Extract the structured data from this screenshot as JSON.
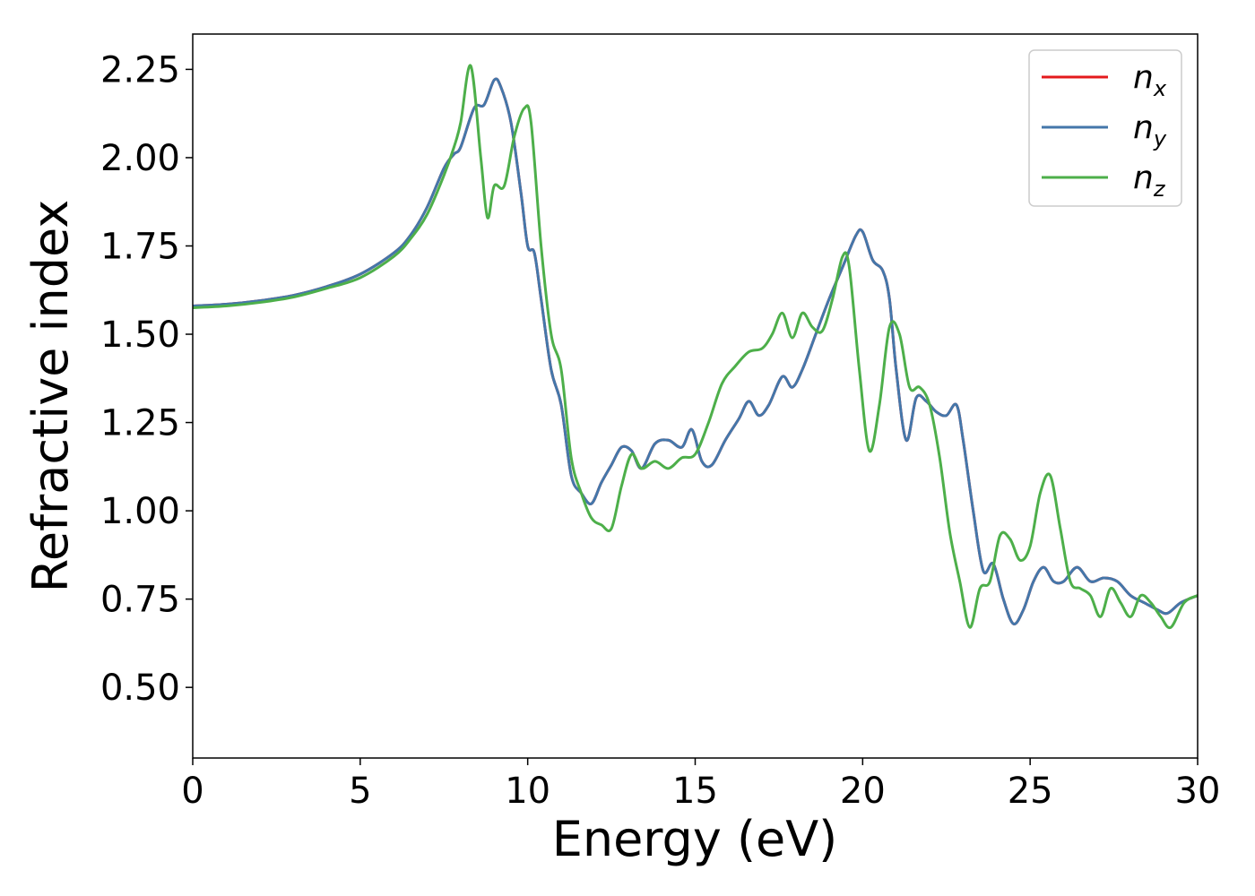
{
  "chart_data": {
    "type": "line",
    "title": "",
    "xlabel": "Energy (eV)",
    "ylabel": "Refractive index",
    "xlim": [
      0,
      30
    ],
    "ylim": [
      0.3,
      2.35
    ],
    "xticks": [
      0,
      5,
      10,
      15,
      20,
      25,
      30
    ],
    "xtick_labels": [
      "0",
      "5",
      "10",
      "15",
      "20",
      "25",
      "30"
    ],
    "yticks": [
      0.5,
      0.75,
      1.0,
      1.25,
      1.5,
      1.75,
      2.0,
      2.25
    ],
    "ytick_labels": [
      "0.50",
      "0.75",
      "1.00",
      "1.25",
      "1.50",
      "1.75",
      "2.00",
      "2.25"
    ],
    "grid": false,
    "legend_position": "top-right",
    "series": [
      {
        "name": "n_x",
        "legend_base": "n",
        "legend_sub": "x",
        "color": "#e41a1c",
        "x": [
          0,
          1,
          2,
          3,
          4,
          5,
          6,
          6.5,
          7,
          7.5,
          7.8,
          8.0,
          8.4,
          8.7,
          9.0,
          9.2,
          9.5,
          9.8,
          10.0,
          10.2,
          10.4,
          10.7,
          11.0,
          11.3,
          11.6,
          11.9,
          12.2,
          12.5,
          12.8,
          13.1,
          13.4,
          13.8,
          14.2,
          14.6,
          14.9,
          15.2,
          15.5,
          15.9,
          16.3,
          16.6,
          16.9,
          17.2,
          17.6,
          17.9,
          18.2,
          18.6,
          19.0,
          19.4,
          19.8,
          20.0,
          20.3,
          20.6,
          20.8,
          21.0,
          21.3,
          21.6,
          21.9,
          22.2,
          22.5,
          22.8,
          23.0,
          23.3,
          23.6,
          23.9,
          24.2,
          24.5,
          24.8,
          25.1,
          25.4,
          25.7,
          26.0,
          26.4,
          26.8,
          27.2,
          27.6,
          28.0,
          28.4,
          28.8,
          29.1,
          29.5,
          30
        ],
        "y": [
          1.58,
          1.585,
          1.595,
          1.61,
          1.635,
          1.67,
          1.73,
          1.78,
          1.86,
          1.97,
          2.01,
          2.03,
          2.14,
          2.15,
          2.22,
          2.2,
          2.1,
          1.9,
          1.75,
          1.73,
          1.6,
          1.4,
          1.3,
          1.1,
          1.05,
          1.02,
          1.08,
          1.13,
          1.18,
          1.17,
          1.12,
          1.19,
          1.2,
          1.18,
          1.23,
          1.14,
          1.13,
          1.2,
          1.26,
          1.31,
          1.27,
          1.3,
          1.38,
          1.35,
          1.4,
          1.5,
          1.6,
          1.69,
          1.78,
          1.79,
          1.71,
          1.68,
          1.6,
          1.4,
          1.2,
          1.32,
          1.31,
          1.28,
          1.27,
          1.3,
          1.2,
          1.0,
          0.83,
          0.85,
          0.75,
          0.68,
          0.72,
          0.8,
          0.84,
          0.8,
          0.8,
          0.84,
          0.8,
          0.81,
          0.8,
          0.76,
          0.74,
          0.72,
          0.71,
          0.74,
          0.76
        ]
      },
      {
        "name": "n_y",
        "legend_base": "n",
        "legend_sub": "y",
        "color": "#4477aa",
        "x": [
          0,
          1,
          2,
          3,
          4,
          5,
          6,
          6.5,
          7,
          7.5,
          7.8,
          8.0,
          8.4,
          8.7,
          9.0,
          9.2,
          9.5,
          9.8,
          10.0,
          10.2,
          10.4,
          10.7,
          11.0,
          11.3,
          11.6,
          11.9,
          12.2,
          12.5,
          12.8,
          13.1,
          13.4,
          13.8,
          14.2,
          14.6,
          14.9,
          15.2,
          15.5,
          15.9,
          16.3,
          16.6,
          16.9,
          17.2,
          17.6,
          17.9,
          18.2,
          18.6,
          19.0,
          19.4,
          19.8,
          20.0,
          20.3,
          20.6,
          20.8,
          21.0,
          21.3,
          21.6,
          21.9,
          22.2,
          22.5,
          22.8,
          23.0,
          23.3,
          23.6,
          23.9,
          24.2,
          24.5,
          24.8,
          25.1,
          25.4,
          25.7,
          26.0,
          26.4,
          26.8,
          27.2,
          27.6,
          28.0,
          28.4,
          28.8,
          29.1,
          29.5,
          30
        ],
        "y": [
          1.58,
          1.585,
          1.595,
          1.61,
          1.635,
          1.67,
          1.73,
          1.78,
          1.86,
          1.97,
          2.01,
          2.03,
          2.14,
          2.15,
          2.22,
          2.2,
          2.1,
          1.9,
          1.75,
          1.73,
          1.6,
          1.4,
          1.3,
          1.1,
          1.05,
          1.02,
          1.08,
          1.13,
          1.18,
          1.17,
          1.12,
          1.19,
          1.2,
          1.18,
          1.23,
          1.14,
          1.13,
          1.2,
          1.26,
          1.31,
          1.27,
          1.3,
          1.38,
          1.35,
          1.4,
          1.5,
          1.6,
          1.69,
          1.78,
          1.79,
          1.71,
          1.68,
          1.6,
          1.4,
          1.2,
          1.32,
          1.31,
          1.28,
          1.27,
          1.3,
          1.2,
          1.0,
          0.83,
          0.85,
          0.75,
          0.68,
          0.72,
          0.8,
          0.84,
          0.8,
          0.8,
          0.84,
          0.8,
          0.81,
          0.8,
          0.76,
          0.74,
          0.72,
          0.71,
          0.74,
          0.76
        ]
      },
      {
        "name": "n_z",
        "legend_base": "n",
        "legend_sub": "z",
        "color": "#4daf4a",
        "x": [
          0,
          1,
          2,
          3,
          4,
          5,
          6,
          6.5,
          7,
          7.5,
          7.8,
          8.0,
          8.3,
          8.6,
          8.8,
          9.0,
          9.3,
          9.6,
          9.9,
          10.1,
          10.4,
          10.7,
          11.0,
          11.3,
          11.6,
          11.9,
          12.2,
          12.5,
          12.8,
          13.1,
          13.4,
          13.8,
          14.2,
          14.6,
          15.0,
          15.4,
          15.8,
          16.2,
          16.6,
          17.0,
          17.3,
          17.6,
          17.9,
          18.2,
          18.5,
          18.8,
          19.1,
          19.4,
          19.6,
          19.9,
          20.2,
          20.5,
          20.8,
          21.1,
          21.4,
          21.7,
          22.0,
          22.3,
          22.6,
          22.9,
          23.2,
          23.5,
          23.8,
          24.1,
          24.4,
          24.7,
          25.0,
          25.3,
          25.6,
          25.9,
          26.2,
          26.5,
          26.8,
          27.1,
          27.4,
          27.7,
          28.0,
          28.3,
          28.6,
          28.9,
          29.2,
          29.6,
          30
        ],
        "y": [
          1.575,
          1.58,
          1.59,
          1.605,
          1.63,
          1.66,
          1.72,
          1.77,
          1.84,
          1.95,
          2.03,
          2.1,
          2.26,
          2.0,
          1.83,
          1.92,
          1.92,
          2.06,
          2.14,
          2.1,
          1.75,
          1.5,
          1.4,
          1.15,
          1.05,
          0.98,
          0.96,
          0.95,
          1.07,
          1.16,
          1.12,
          1.14,
          1.12,
          1.15,
          1.16,
          1.25,
          1.36,
          1.41,
          1.45,
          1.46,
          1.5,
          1.56,
          1.49,
          1.56,
          1.52,
          1.51,
          1.6,
          1.72,
          1.69,
          1.4,
          1.17,
          1.3,
          1.52,
          1.5,
          1.35,
          1.35,
          1.3,
          1.15,
          0.94,
          0.8,
          0.67,
          0.78,
          0.8,
          0.93,
          0.92,
          0.86,
          0.9,
          1.05,
          1.1,
          0.95,
          0.8,
          0.78,
          0.76,
          0.7,
          0.78,
          0.74,
          0.7,
          0.76,
          0.74,
          0.7,
          0.67,
          0.74,
          0.76
        ]
      }
    ]
  }
}
